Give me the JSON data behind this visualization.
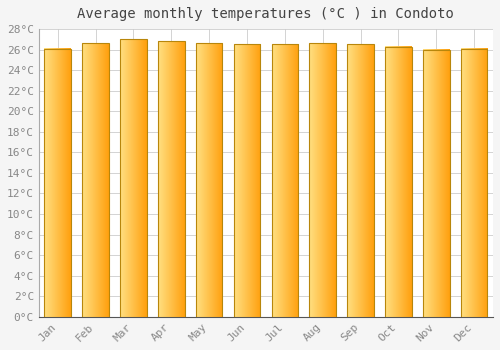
{
  "title": "Average monthly temperatures (°C ) in Condoto",
  "months": [
    "Jan",
    "Feb",
    "Mar",
    "Apr",
    "May",
    "Jun",
    "Jul",
    "Aug",
    "Sep",
    "Oct",
    "Nov",
    "Dec"
  ],
  "values": [
    26.1,
    26.6,
    27.0,
    26.8,
    26.6,
    26.5,
    26.5,
    26.6,
    26.5,
    26.3,
    26.0,
    26.1
  ],
  "bar_color_left": "#FFE082",
  "bar_color_right": "#FFA000",
  "bar_color_edge": "#B8860B",
  "ylim": [
    0,
    28
  ],
  "ytick_step": 2,
  "background_color": "#f5f5f5",
  "plot_bg_color": "#ffffff",
  "grid_color": "#cccccc",
  "title_fontsize": 10,
  "tick_fontsize": 8,
  "tick_color": "#888888"
}
